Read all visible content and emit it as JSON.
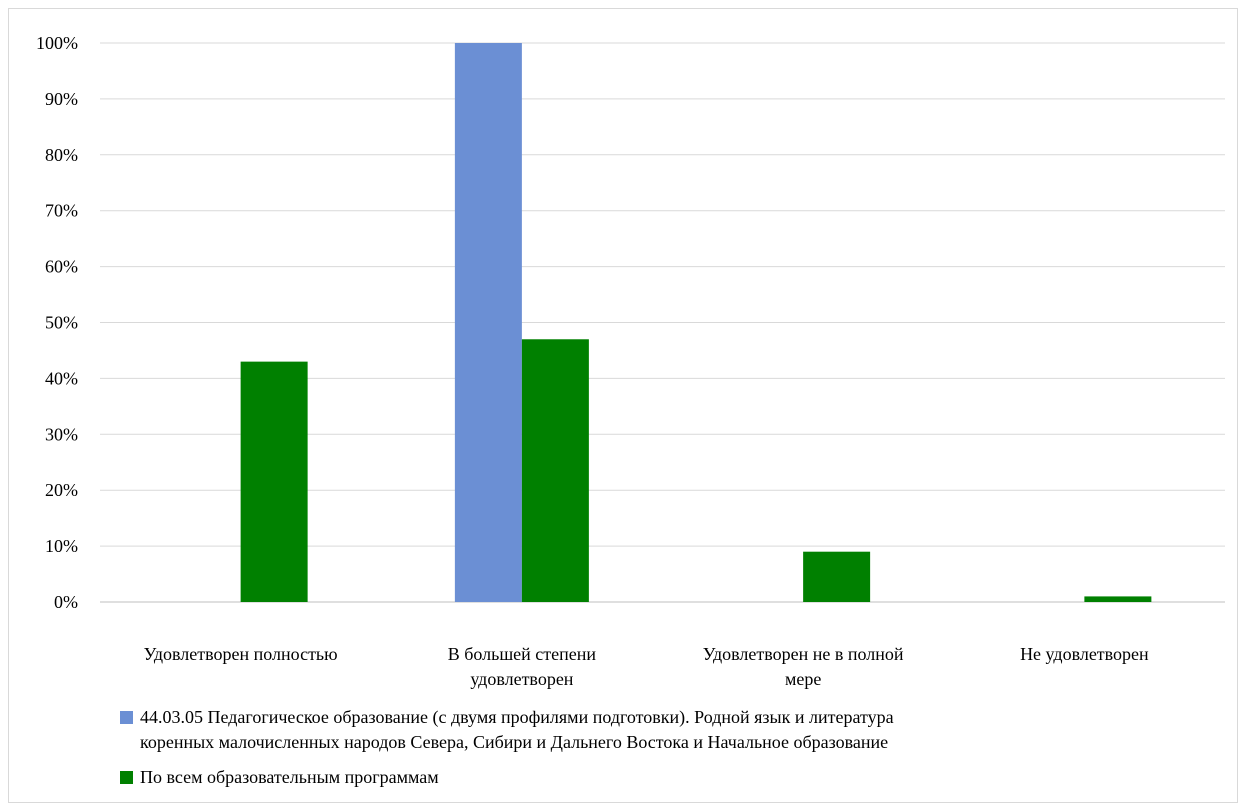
{
  "chart_data": {
    "type": "bar",
    "categories": [
      [
        "Удовлетворен полностью"
      ],
      [
        "В большей степени",
        "удовлетворен"
      ],
      [
        "Удовлетворен не в полной",
        "мере"
      ],
      [
        "Не удовлетворен"
      ]
    ],
    "series": [
      {
        "name_lines": [
          "44.03.05 Педагогическое образование (с двумя профилями подготовки). Родной язык и литература",
          "коренных малочисленных народов Севера, Сибири и Дальнего Востока и Начальное образование"
        ],
        "color": "#6b8fd4",
        "values": [
          0,
          100,
          0,
          0
        ]
      },
      {
        "name_lines": [
          "По всем образовательным программам"
        ],
        "color": "#008000",
        "values": [
          43,
          47,
          9,
          1
        ]
      }
    ],
    "ylim": [
      0,
      100
    ],
    "yticks": [
      "0%",
      "10%",
      "20%",
      "30%",
      "40%",
      "50%",
      "60%",
      "70%",
      "80%",
      "90%",
      "100%"
    ],
    "grid": true,
    "legend_position": "bottom"
  }
}
